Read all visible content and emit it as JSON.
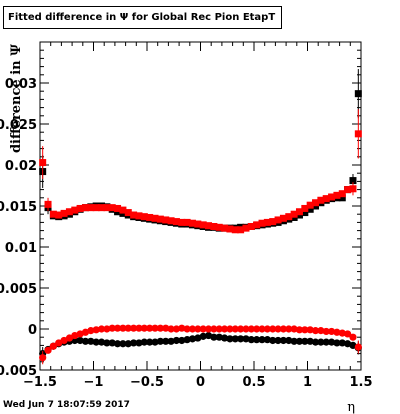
{
  "chart_data": {
    "type": "scatter",
    "title": "Fitted difference in  Ψ  for Global Rec Pion EtapT",
    "xlabel": "η",
    "ylabel": "difference in  Ψ",
    "xlim": [
      -1.5,
      1.5
    ],
    "ylim": [
      -0.005,
      0.035
    ],
    "xticks": [
      -1.5,
      -1,
      -0.5,
      0,
      0.5,
      1,
      1.5
    ],
    "xtick_labels": [
      "−1.5",
      "−1",
      "−0.5",
      "0",
      "0.5",
      "1",
      "1.5"
    ],
    "yticks": [
      -0.005,
      0,
      0.005,
      0.01,
      0.015,
      0.02,
      0.025,
      0.03
    ],
    "ytick_labels": [
      "−0.005",
      "0",
      "0.005",
      "0.01",
      "0.015",
      "0.02",
      "0.025",
      "0.03"
    ],
    "grid": false,
    "series": [
      {
        "color": "#000000",
        "marker": "square",
        "x": [
          -1.475,
          -1.425,
          -1.375,
          -1.325,
          -1.275,
          -1.225,
          -1.175,
          -1.125,
          -1.075,
          -1.025,
          -0.975,
          -0.925,
          -0.875,
          -0.825,
          -0.775,
          -0.725,
          -0.675,
          -0.625,
          -0.575,
          -0.525,
          -0.475,
          -0.425,
          -0.375,
          -0.325,
          -0.275,
          -0.225,
          -0.175,
          -0.125,
          -0.075,
          -0.025,
          0.025,
          0.075,
          0.125,
          0.175,
          0.225,
          0.275,
          0.325,
          0.375,
          0.425,
          0.475,
          0.525,
          0.575,
          0.625,
          0.675,
          0.725,
          0.775,
          0.825,
          0.875,
          0.925,
          0.975,
          1.025,
          1.075,
          1.125,
          1.175,
          1.225,
          1.275,
          1.325,
          1.375,
          1.425,
          1.475
        ],
        "y": [
          0.0192,
          0.0148,
          0.0138,
          0.0137,
          0.0138,
          0.014,
          0.0143,
          0.0146,
          0.0148,
          0.0149,
          0.015,
          0.015,
          0.0149,
          0.0146,
          0.0143,
          0.0141,
          0.0139,
          0.0137,
          0.0136,
          0.0135,
          0.0134,
          0.0133,
          0.0132,
          0.0131,
          0.013,
          0.0129,
          0.0128,
          0.0128,
          0.0127,
          0.0126,
          0.0125,
          0.0124,
          0.0124,
          0.0123,
          0.0123,
          0.0123,
          0.0123,
          0.0124,
          0.0124,
          0.0125,
          0.0126,
          0.0127,
          0.0128,
          0.0129,
          0.013,
          0.0132,
          0.0134,
          0.0136,
          0.0139,
          0.0142,
          0.0146,
          0.015,
          0.0154,
          0.0157,
          0.0159,
          0.016,
          0.016,
          0.017,
          0.0181,
          0.0287
        ],
        "yerr": [
          0.002,
          0.0008,
          0.0003,
          0.0002,
          0.0002,
          0.0002,
          0.0002,
          0.0002,
          0.0002,
          0.0002,
          0.0002,
          0.0002,
          0.0002,
          0.0002,
          0.0002,
          0.0002,
          0.0002,
          0.0002,
          0.0002,
          0.0002,
          0.0002,
          0.0002,
          0.0002,
          0.0002,
          0.0002,
          0.0002,
          0.0002,
          0.0002,
          0.0002,
          0.0002,
          0.0002,
          0.0002,
          0.0002,
          0.0002,
          0.0002,
          0.0002,
          0.0002,
          0.0002,
          0.0002,
          0.0002,
          0.0002,
          0.0002,
          0.0002,
          0.0002,
          0.0002,
          0.0002,
          0.0002,
          0.0002,
          0.0002,
          0.0002,
          0.0002,
          0.0002,
          0.0002,
          0.0002,
          0.0002,
          0.0002,
          0.0002,
          0.0004,
          0.0008,
          0.003
        ]
      },
      {
        "color": "#ff0000",
        "marker": "square",
        "x": [
          -1.475,
          -1.425,
          -1.375,
          -1.325,
          -1.275,
          -1.225,
          -1.175,
          -1.125,
          -1.075,
          -1.025,
          -0.975,
          -0.925,
          -0.875,
          -0.825,
          -0.775,
          -0.725,
          -0.675,
          -0.625,
          -0.575,
          -0.525,
          -0.475,
          -0.425,
          -0.375,
          -0.325,
          -0.275,
          -0.225,
          -0.175,
          -0.125,
          -0.075,
          -0.025,
          0.025,
          0.075,
          0.125,
          0.175,
          0.225,
          0.275,
          0.325,
          0.375,
          0.425,
          0.475,
          0.525,
          0.575,
          0.625,
          0.675,
          0.725,
          0.775,
          0.825,
          0.875,
          0.925,
          0.975,
          1.025,
          1.075,
          1.125,
          1.175,
          1.225,
          1.275,
          1.325,
          1.375,
          1.425,
          1.475
        ],
        "y": [
          0.0203,
          0.0152,
          0.014,
          0.0139,
          0.0141,
          0.0143,
          0.0145,
          0.0147,
          0.0148,
          0.0148,
          0.0148,
          0.0148,
          0.0148,
          0.0148,
          0.0147,
          0.0145,
          0.0142,
          0.0139,
          0.0138,
          0.0137,
          0.0136,
          0.0135,
          0.0134,
          0.0133,
          0.0132,
          0.0131,
          0.013,
          0.013,
          0.0129,
          0.0128,
          0.0127,
          0.0126,
          0.0125,
          0.0124,
          0.0123,
          0.0122,
          0.0121,
          0.0121,
          0.0123,
          0.0125,
          0.0127,
          0.0129,
          0.013,
          0.0131,
          0.0133,
          0.0135,
          0.0137,
          0.014,
          0.0143,
          0.0147,
          0.0151,
          0.0154,
          0.0157,
          0.0159,
          0.0161,
          0.0163,
          0.0165,
          0.017,
          0.0171,
          0.0238
        ],
        "yerr": [
          0.002,
          0.0008,
          0.0003,
          0.0002,
          0.0002,
          0.0002,
          0.0002,
          0.0002,
          0.0002,
          0.0002,
          0.0002,
          0.0002,
          0.0002,
          0.0002,
          0.0002,
          0.0002,
          0.0002,
          0.0002,
          0.0002,
          0.0002,
          0.0002,
          0.0002,
          0.0002,
          0.0002,
          0.0002,
          0.0002,
          0.0002,
          0.0002,
          0.0002,
          0.0002,
          0.0002,
          0.0002,
          0.0002,
          0.0002,
          0.0002,
          0.0002,
          0.0002,
          0.0002,
          0.0002,
          0.0002,
          0.0002,
          0.0002,
          0.0002,
          0.0002,
          0.0002,
          0.0002,
          0.0002,
          0.0002,
          0.0002,
          0.0002,
          0.0002,
          0.0002,
          0.0002,
          0.0002,
          0.0002,
          0.0002,
          0.0002,
          0.0004,
          0.0008,
          0.003
        ]
      },
      {
        "color": "#000000",
        "marker": "circle",
        "x": [
          -1.475,
          -1.425,
          -1.375,
          -1.325,
          -1.275,
          -1.225,
          -1.175,
          -1.125,
          -1.075,
          -1.025,
          -0.975,
          -0.925,
          -0.875,
          -0.825,
          -0.775,
          -0.725,
          -0.675,
          -0.625,
          -0.575,
          -0.525,
          -0.475,
          -0.425,
          -0.375,
          -0.325,
          -0.275,
          -0.225,
          -0.175,
          -0.125,
          -0.075,
          -0.025,
          0.025,
          0.075,
          0.125,
          0.175,
          0.225,
          0.275,
          0.325,
          0.375,
          0.425,
          0.475,
          0.525,
          0.575,
          0.625,
          0.675,
          0.725,
          0.775,
          0.825,
          0.875,
          0.925,
          0.975,
          1.025,
          1.075,
          1.125,
          1.175,
          1.225,
          1.275,
          1.325,
          1.375,
          1.425,
          1.475
        ],
        "y": [
          -0.003,
          -0.0025,
          -0.0021,
          -0.0018,
          -0.0016,
          -0.0015,
          -0.0014,
          -0.0014,
          -0.0015,
          -0.0015,
          -0.0016,
          -0.0016,
          -0.0017,
          -0.0017,
          -0.0018,
          -0.0018,
          -0.0018,
          -0.0017,
          -0.0017,
          -0.0016,
          -0.0016,
          -0.0016,
          -0.0015,
          -0.0015,
          -0.0015,
          -0.0014,
          -0.0014,
          -0.0013,
          -0.0012,
          -0.0011,
          -0.0009,
          -0.0008,
          -0.001,
          -0.001,
          -0.0011,
          -0.0012,
          -0.0012,
          -0.0012,
          -0.0012,
          -0.0013,
          -0.0013,
          -0.0013,
          -0.0013,
          -0.0014,
          -0.0014,
          -0.0014,
          -0.0014,
          -0.0015,
          -0.0015,
          -0.0015,
          -0.0015,
          -0.0016,
          -0.0016,
          -0.0016,
          -0.0016,
          -0.0017,
          -0.0017,
          -0.0018,
          -0.002,
          -0.0023
        ],
        "yerr": [
          0.0008,
          0.0003,
          0.0001,
          0,
          0,
          0,
          0,
          0,
          0,
          0,
          0,
          0,
          0,
          0,
          0,
          0,
          0,
          0,
          0,
          0,
          0,
          0,
          0,
          0,
          0,
          0,
          0,
          0,
          0,
          0,
          0,
          0,
          0,
          0,
          0,
          0,
          0,
          0,
          0,
          0,
          0,
          0,
          0,
          0,
          0,
          0,
          0,
          0,
          0,
          0,
          0,
          0,
          0,
          0,
          0,
          0,
          0,
          0.0001,
          0.0002,
          0.0008
        ]
      },
      {
        "color": "#ff0000",
        "marker": "circle",
        "x": [
          -1.475,
          -1.425,
          -1.375,
          -1.325,
          -1.275,
          -1.225,
          -1.175,
          -1.125,
          -1.075,
          -1.025,
          -0.975,
          -0.925,
          -0.875,
          -0.825,
          -0.775,
          -0.725,
          -0.675,
          -0.625,
          -0.575,
          -0.525,
          -0.475,
          -0.425,
          -0.375,
          -0.325,
          -0.275,
          -0.225,
          -0.175,
          -0.125,
          -0.075,
          -0.025,
          0.025,
          0.075,
          0.125,
          0.175,
          0.225,
          0.275,
          0.325,
          0.375,
          0.425,
          0.475,
          0.525,
          0.575,
          0.625,
          0.675,
          0.725,
          0.775,
          0.825,
          0.875,
          0.925,
          0.975,
          1.025,
          1.075,
          1.125,
          1.175,
          1.225,
          1.275,
          1.325,
          1.375,
          1.425,
          1.475
        ],
        "y": [
          -0.0035,
          -0.0026,
          -0.0021,
          -0.0017,
          -0.0014,
          -0.0011,
          -0.0008,
          -0.0006,
          -0.0004,
          -0.0002,
          -0.0001,
          0.0,
          0.0,
          0.0001,
          0.0001,
          0.0001,
          0.0001,
          0.0001,
          0.0001,
          0.0001,
          0.0001,
          0.0001,
          0.0001,
          0.0001,
          0.0,
          0.0,
          0.0001,
          0.0,
          0.0,
          0.0,
          0.0,
          0.0,
          0.0,
          0.0,
          0.0,
          0.0,
          0.0,
          0.0,
          0.0,
          0.0,
          0.0,
          0.0,
          0.0,
          0.0,
          0.0,
          0.0,
          0.0,
          0.0,
          -0.0001,
          -0.0001,
          -0.0001,
          -0.0002,
          -0.0002,
          -0.0003,
          -0.0003,
          -0.0004,
          -0.0005,
          -0.0006,
          -0.001,
          -0.0022
        ],
        "yerr": [
          0.0008,
          0.0003,
          0.0001,
          0,
          0,
          0,
          0,
          0,
          0,
          0,
          0,
          0,
          0,
          0,
          0,
          0,
          0,
          0,
          0,
          0,
          0,
          0,
          0,
          0,
          0,
          0,
          0,
          0,
          0,
          0,
          0,
          0,
          0,
          0,
          0,
          0,
          0,
          0,
          0,
          0,
          0,
          0,
          0,
          0,
          0,
          0,
          0,
          0,
          0,
          0,
          0,
          0,
          0,
          0,
          0,
          0,
          0,
          0.0001,
          0.0002,
          0.0008
        ]
      }
    ]
  },
  "footer": {
    "timestamp": "Wed Jun  7 18:07:59 2017"
  }
}
